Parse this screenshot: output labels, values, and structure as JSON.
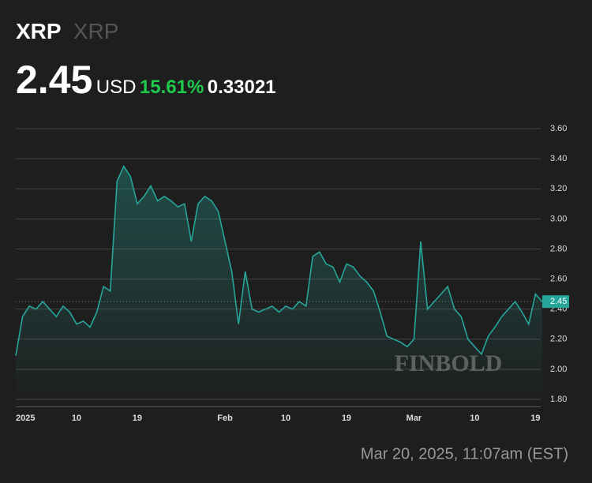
{
  "header": {
    "symbol": "XRP",
    "name": "XRP",
    "price": "2.45",
    "currency": "USD",
    "change_pct": "15.61%",
    "change": "0.33021"
  },
  "timestamp": "Mar 20, 2025, 11:07am (EST)",
  "watermark": "FINBOLD",
  "chart_data": {
    "type": "line",
    "categories": [
      "2025",
      null,
      null,
      null,
      null,
      null,
      null,
      null,
      null,
      "10",
      null,
      null,
      null,
      null,
      null,
      null,
      null,
      null,
      "19",
      null,
      null,
      null,
      null,
      null,
      null,
      null,
      null,
      null,
      null,
      null,
      null,
      "Feb",
      null,
      null,
      null,
      null,
      null,
      null,
      null,
      null,
      "10",
      null,
      null,
      null,
      null,
      null,
      null,
      null,
      null,
      "19",
      null,
      null,
      null,
      null,
      null,
      null,
      null,
      null,
      null,
      "Mar",
      null,
      null,
      null,
      null,
      null,
      null,
      null,
      null,
      "10",
      null,
      null,
      null,
      null,
      null,
      null,
      null,
      null,
      "19",
      null
    ],
    "series": [
      {
        "name": "XRP",
        "color": "#26a69a",
        "values": [
          2.09,
          2.35,
          2.42,
          2.4,
          2.45,
          2.4,
          2.35,
          2.42,
          2.38,
          2.3,
          2.32,
          2.28,
          2.38,
          2.55,
          2.52,
          3.25,
          3.35,
          3.28,
          3.1,
          3.15,
          3.22,
          3.12,
          3.15,
          3.12,
          3.08,
          3.1,
          2.85,
          3.1,
          3.15,
          3.12,
          3.05,
          2.85,
          2.65,
          2.3,
          2.65,
          2.4,
          2.38,
          2.4,
          2.42,
          2.38,
          2.42,
          2.4,
          2.45,
          2.42,
          2.75,
          2.78,
          2.7,
          2.68,
          2.58,
          2.7,
          2.68,
          2.62,
          2.58,
          2.52,
          2.38,
          2.22,
          2.2,
          2.18,
          2.15,
          2.2,
          2.85,
          2.4,
          2.45,
          2.5,
          2.55,
          2.4,
          2.35,
          2.2,
          2.15,
          2.1,
          2.22,
          2.28,
          2.35,
          2.4,
          2.45,
          2.38,
          2.3,
          2.5,
          2.45
        ]
      }
    ],
    "ylim": [
      1.75,
      3.7
    ],
    "yticks": [
      {
        "value": 1.8,
        "label": "1.80"
      },
      {
        "value": 2.0,
        "label": "2.00"
      },
      {
        "value": 2.2,
        "label": "2.20"
      },
      {
        "value": 2.4,
        "label": "2.40"
      },
      {
        "value": 2.6,
        "label": "2.60"
      },
      {
        "value": 2.8,
        "label": "2.80"
      },
      {
        "value": 3.0,
        "label": "3.00"
      },
      {
        "value": 3.2,
        "label": "3.20"
      },
      {
        "value": 3.4,
        "label": "3.40"
      },
      {
        "value": 3.6,
        "label": "3.60"
      }
    ],
    "grid": true
  }
}
